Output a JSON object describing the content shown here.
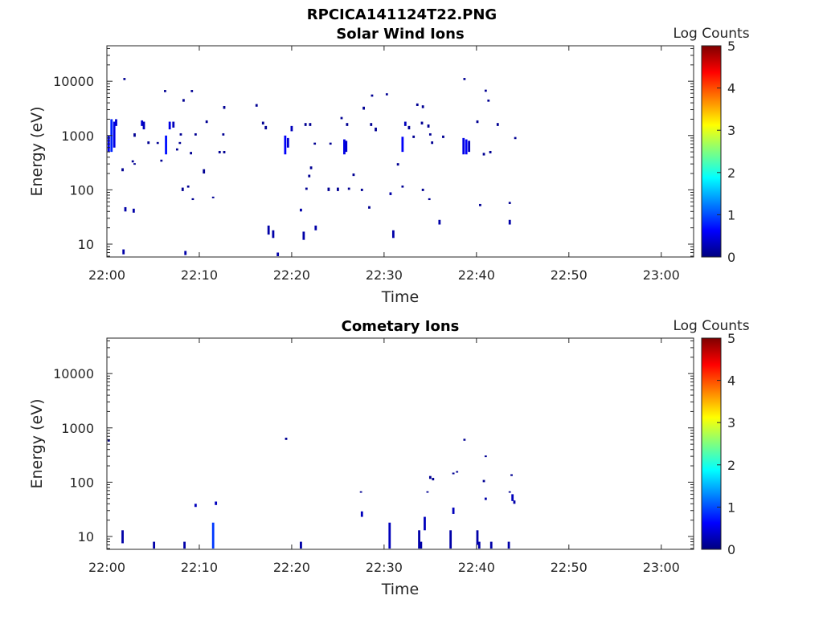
{
  "figure_title": "RPCICA141124T22.PNG",
  "colors": {
    "axis": "#262626",
    "colormap": [
      "#00007f",
      "#0000ff",
      "#007fff",
      "#00ffff",
      "#7fff7f",
      "#ffff00",
      "#ff7f00",
      "#ff0000",
      "#7f0000"
    ]
  },
  "chart_data": [
    {
      "type": "heatmap",
      "title": "Solar Wind Ions",
      "xlabel": "Time",
      "ylabel": "Energy (eV)",
      "colorbar_label": "Log Counts",
      "x_ticks": [
        "22:00",
        "22:10",
        "22:20",
        "22:30",
        "22:40",
        "22:50",
        "23:00"
      ],
      "y_ticks": [
        "10",
        "100",
        "1000",
        "10000"
      ],
      "colorbar_ticks": [
        "0",
        "1",
        "2",
        "3",
        "4",
        "5"
      ],
      "xlim_minutes_after_2200": [
        0,
        63.5
      ],
      "ylim_eV": [
        5.8,
        45000
      ],
      "y_scale": "log",
      "clim": [
        0,
        5
      ],
      "cells": [
        [
          0.2,
          500,
          1000,
          0.6
        ],
        [
          0.5,
          500,
          2000,
          0.8
        ],
        [
          0.8,
          600,
          1800,
          0.5
        ],
        [
          1.0,
          1500,
          2000,
          0.4
        ],
        [
          3.8,
          1500,
          1900,
          0.4
        ],
        [
          4.0,
          1300,
          1800,
          0.3
        ],
        [
          6.4,
          450,
          1000,
          0.7
        ],
        [
          6.8,
          1300,
          1800,
          0.5
        ],
        [
          7.2,
          1400,
          1800,
          0.3
        ],
        [
          19.3,
          450,
          1000,
          0.6
        ],
        [
          19.6,
          600,
          900,
          0.4
        ],
        [
          20.0,
          1200,
          1500,
          0.3
        ],
        [
          25.7,
          450,
          850,
          0.5
        ],
        [
          25.9,
          500,
          800,
          0.4
        ],
        [
          32.0,
          500,
          950,
          0.6
        ],
        [
          32.3,
          1500,
          1800,
          0.3
        ],
        [
          38.6,
          450,
          900,
          0.5
        ],
        [
          38.9,
          450,
          850,
          0.6
        ],
        [
          39.2,
          500,
          800,
          0.3
        ],
        [
          2.0,
          40,
          48,
          0.2
        ],
        [
          2.9,
          38,
          45,
          0.2
        ],
        [
          1.8,
          6.5,
          8,
          0.2
        ],
        [
          8.5,
          6.3,
          7.5,
          0.2
        ],
        [
          17.5,
          15,
          22,
          0.2
        ],
        [
          18.0,
          13,
          18,
          0.2
        ],
        [
          18.5,
          6,
          7,
          0.2
        ],
        [
          21.0,
          40,
          45,
          0.2
        ],
        [
          21.3,
          12,
          17,
          0.2
        ],
        [
          22.6,
          18,
          22,
          0.2
        ],
        [
          31.0,
          13,
          18,
          0.2
        ],
        [
          30.7,
          80,
          90,
          0.2
        ],
        [
          36.0,
          23,
          28,
          0.2
        ],
        [
          43.6,
          23,
          28,
          0.2
        ],
        [
          1.9,
          10500,
          11500,
          0.1
        ],
        [
          6.3,
          6300,
          6900,
          0.1
        ],
        [
          9.2,
          6300,
          6900,
          0.1
        ],
        [
          8.3,
          4200,
          4700,
          0.1
        ],
        [
          12.7,
          3100,
          3500,
          0.1
        ],
        [
          16.2,
          3400,
          3800,
          0.1
        ],
        [
          25.4,
          2000,
          2200,
          0.1
        ],
        [
          27.8,
          3000,
          3400,
          0.1
        ],
        [
          28.7,
          5200,
          5700,
          0.1
        ],
        [
          30.3,
          5500,
          6000,
          0.1
        ],
        [
          33.6,
          3500,
          3900,
          0.1
        ],
        [
          34.2,
          3200,
          3600,
          0.1
        ],
        [
          38.7,
          10500,
          11500,
          0.1
        ],
        [
          41.0,
          6400,
          7000,
          0.1
        ],
        [
          41.3,
          4200,
          4600,
          0.1
        ],
        [
          3.0,
          950,
          1100,
          0.1
        ],
        [
          4.5,
          700,
          780,
          0.1
        ],
        [
          5.5,
          700,
          760,
          0.1
        ],
        [
          8.0,
          1000,
          1100,
          0.1
        ],
        [
          9.6,
          1000,
          1100,
          0.1
        ],
        [
          10.8,
          1700,
          1900,
          0.1
        ],
        [
          12.6,
          1000,
          1100,
          0.1
        ],
        [
          12.2,
          470,
          520,
          0.1
        ],
        [
          12.7,
          470,
          520,
          0.1
        ],
        [
          16.9,
          1600,
          1800,
          0.1
        ],
        [
          17.2,
          1300,
          1500,
          0.1
        ],
        [
          21.5,
          1500,
          1700,
          0.1
        ],
        [
          22.0,
          1500,
          1700,
          0.1
        ],
        [
          22.5,
          680,
          740,
          0.1
        ],
        [
          24.2,
          680,
          740,
          0.1
        ],
        [
          26.0,
          1500,
          1700,
          0.1
        ],
        [
          28.6,
          1500,
          1700,
          0.1
        ],
        [
          29.1,
          1200,
          1400,
          0.1
        ],
        [
          32.7,
          1300,
          1500,
          0.1
        ],
        [
          33.2,
          900,
          1000,
          0.1
        ],
        [
          34.1,
          1600,
          1800,
          0.1
        ],
        [
          34.8,
          1400,
          1600,
          0.1
        ],
        [
          35.0,
          1000,
          1100,
          0.1
        ],
        [
          35.2,
          700,
          780,
          0.1
        ],
        [
          36.4,
          900,
          1000,
          0.1
        ],
        [
          40.1,
          1700,
          1900,
          0.1
        ],
        [
          40.8,
          430,
          480,
          0.1
        ],
        [
          41.5,
          470,
          520,
          0.1
        ],
        [
          42.3,
          1500,
          1700,
          0.1
        ],
        [
          44.2,
          860,
          940,
          0.1
        ],
        [
          1.7,
          220,
          250,
          0.1
        ],
        [
          2.8,
          320,
          350,
          0.1
        ],
        [
          3.0,
          290,
          310,
          0.1
        ],
        [
          8.2,
          95,
          110,
          0.1
        ],
        [
          8.8,
          110,
          120,
          0.1
        ],
        [
          9.3,
          65,
          70,
          0.1
        ],
        [
          10.5,
          200,
          240,
          0.1
        ],
        [
          11.5,
          70,
          75,
          0.1
        ],
        [
          21.6,
          100,
          110,
          0.1
        ],
        [
          21.9,
          170,
          190,
          0.1
        ],
        [
          22.1,
          240,
          270,
          0.1
        ],
        [
          24.0,
          95,
          110,
          0.1
        ],
        [
          25.0,
          95,
          110,
          0.1
        ],
        [
          26.2,
          100,
          110,
          0.1
        ],
        [
          26.7,
          180,
          200,
          0.1
        ],
        [
          27.6,
          95,
          105,
          0.1
        ],
        [
          28.4,
          45,
          50,
          0.1
        ],
        [
          31.5,
          280,
          310,
          0.1
        ],
        [
          32.0,
          110,
          120,
          0.1
        ],
        [
          34.2,
          95,
          105,
          0.1
        ],
        [
          34.9,
          65,
          70,
          0.1
        ],
        [
          40.4,
          50,
          55,
          0.1
        ],
        [
          43.6,
          55,
          60,
          0.1
        ],
        [
          7.6,
          530,
          580,
          0.1
        ],
        [
          5.9,
          330,
          360,
          0.1
        ],
        [
          9.1,
          450,
          500,
          0.1
        ],
        [
          7.9,
          700,
          760,
          0.1
        ]
      ]
    },
    {
      "type": "heatmap",
      "title": "Cometary Ions",
      "xlabel": "Time",
      "ylabel": "Energy (eV)",
      "colorbar_label": "Log Counts",
      "x_ticks": [
        "22:00",
        "22:10",
        "22:20",
        "22:30",
        "22:40",
        "22:50",
        "23:00"
      ],
      "y_ticks": [
        "10",
        "100",
        "1000",
        "10000"
      ],
      "colorbar_ticks": [
        "0",
        "1",
        "2",
        "3",
        "4",
        "5"
      ],
      "xlim_minutes_after_2200": [
        0,
        63.5
      ],
      "ylim_eV": [
        5.8,
        45000
      ],
      "y_scale": "log",
      "clim": [
        0,
        5
      ],
      "cells": [
        [
          1.7,
          7.5,
          13,
          0.2
        ],
        [
          5.1,
          6,
          8,
          0.2
        ],
        [
          8.4,
          6,
          8,
          0.2
        ],
        [
          9.6,
          35,
          40,
          0.3
        ],
        [
          11.5,
          6,
          18,
          0.9
        ],
        [
          11.8,
          38,
          44,
          0.3
        ],
        [
          21.0,
          6,
          8,
          0.2
        ],
        [
          19.4,
          600,
          660,
          0.1
        ],
        [
          0.2,
          560,
          620,
          0.1
        ],
        [
          27.6,
          23,
          29,
          0.3
        ],
        [
          27.5,
          64,
          68,
          0.1
        ],
        [
          30.6,
          6,
          18,
          0.3
        ],
        [
          33.8,
          6,
          13,
          0.2
        ],
        [
          34.0,
          6,
          8,
          0.2
        ],
        [
          34.4,
          13,
          23,
          0.3
        ],
        [
          34.7,
          64,
          68,
          0.1
        ],
        [
          35.0,
          115,
          130,
          0.1
        ],
        [
          35.3,
          108,
          120,
          0.1
        ],
        [
          37.2,
          6,
          13,
          0.2
        ],
        [
          37.5,
          26,
          34,
          0.3
        ],
        [
          37.5,
          140,
          150,
          0.1
        ],
        [
          37.9,
          150,
          160,
          0.1
        ],
        [
          38.7,
          580,
          630,
          0.1
        ],
        [
          40.1,
          7,
          13,
          0.2
        ],
        [
          40.3,
          6,
          8,
          0.2
        ],
        [
          40.8,
          100,
          110,
          0.1
        ],
        [
          41.0,
          290,
          310,
          0.1
        ],
        [
          41.0,
          47,
          52,
          0.2
        ],
        [
          41.6,
          6,
          8,
          0.2
        ],
        [
          43.5,
          6,
          8,
          0.2
        ],
        [
          43.8,
          130,
          140,
          0.1
        ],
        [
          43.6,
          64,
          68,
          0.1
        ],
        [
          43.9,
          45,
          60,
          0.3
        ],
        [
          44.1,
          40,
          46,
          0.2
        ]
      ]
    }
  ]
}
